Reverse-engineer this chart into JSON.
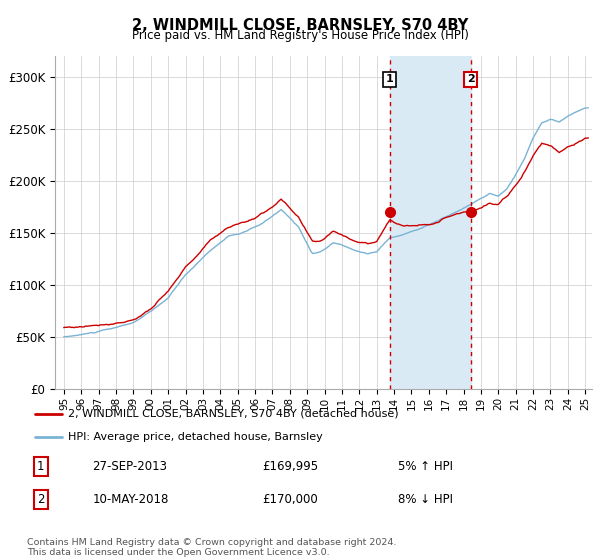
{
  "title": "2, WINDMILL CLOSE, BARNSLEY, S70 4BY",
  "subtitle": "Price paid vs. HM Land Registry's House Price Index (HPI)",
  "hpi_color": "#7ab3d4",
  "price_color": "#cc0000",
  "shaded_color": "#daeaf5",
  "transaction1_date": "27-SEP-2013",
  "transaction1_price": 169995,
  "transaction1_label": "5% ↑ HPI",
  "transaction2_date": "10-MAY-2018",
  "transaction2_price": 170000,
  "transaction2_label": "8% ↓ HPI",
  "legend_label1": "2, WINDMILL CLOSE, BARNSLEY, S70 4BY (detached house)",
  "legend_label2": "HPI: Average price, detached house, Barnsley",
  "footer": "Contains HM Land Registry data © Crown copyright and database right 2024.\nThis data is licensed under the Open Government Licence v3.0.",
  "ylim": [
    0,
    320000
  ],
  "yticks": [
    0,
    50000,
    100000,
    150000,
    200000,
    250000,
    300000
  ],
  "ytick_labels": [
    "£0",
    "£50K",
    "£100K",
    "£150K",
    "£200K",
    "£250K",
    "£300K"
  ]
}
